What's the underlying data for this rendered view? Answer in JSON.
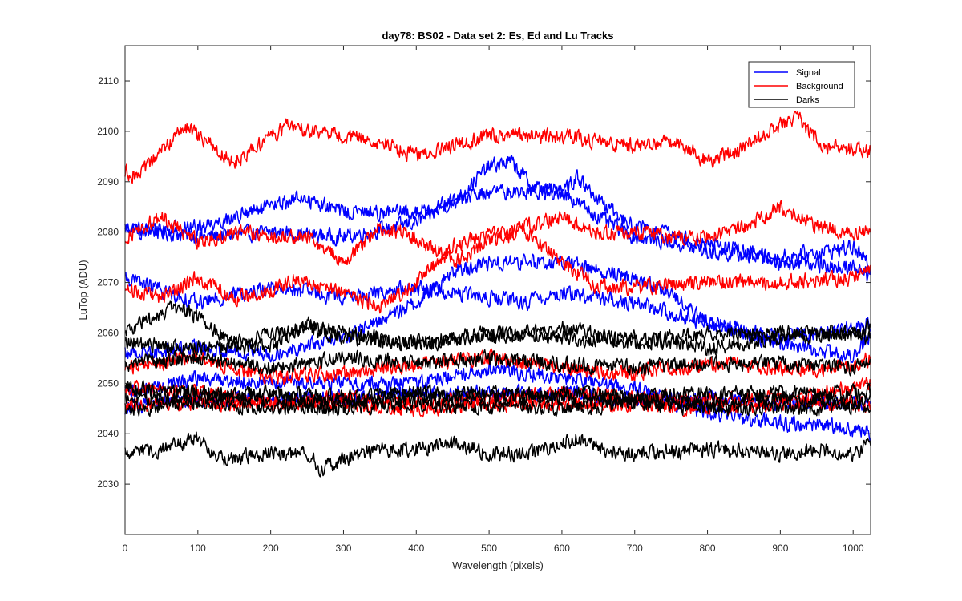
{
  "chart_data": {
    "type": "line",
    "title": "day78: BS02 - Data set 2: Es, Ed and Lu Tracks",
    "xlabel": "Wavelength (pixels)",
    "ylabel": "LuTop (ADU)",
    "xlim": [
      0,
      1024
    ],
    "ylim": [
      2020,
      2117
    ],
    "xticks": [
      0,
      100,
      200,
      300,
      400,
      500,
      600,
      700,
      800,
      900,
      1000
    ],
    "yticks": [
      2030,
      2040,
      2050,
      2060,
      2070,
      2080,
      2090,
      2100,
      2110
    ],
    "grid": false,
    "legend_position": "top-right",
    "legend": [
      {
        "name": "Signal",
        "color": "#0000ff"
      },
      {
        "name": "Background",
        "color": "#ff0000"
      },
      {
        "name": "Darks",
        "color": "#000000"
      }
    ],
    "noise_amplitude": 1.6,
    "series": [
      {
        "name": "Signal",
        "color": "#0000ff",
        "x": [
          0,
          100,
          200,
          300,
          400,
          450,
          500,
          530,
          560,
          600,
          650,
          700,
          750,
          800,
          900,
          1000,
          1024
        ],
        "y": [
          2081,
          2079,
          2080,
          2079,
          2082,
          2086,
          2093,
          2094,
          2089,
          2088,
          2083,
          2079,
          2078,
          2076,
          2075,
          2077,
          2073
        ]
      },
      {
        "name": "Signal",
        "color": "#0000ff",
        "x": [
          0,
          100,
          200,
          240,
          300,
          400,
          500,
          600,
          620,
          650,
          700,
          800,
          900,
          1000,
          1024
        ],
        "y": [
          2080,
          2081,
          2085,
          2087,
          2084,
          2084,
          2088,
          2088,
          2091,
          2086,
          2081,
          2078,
          2074,
          2073,
          2071
        ]
      },
      {
        "name": "Signal",
        "color": "#0000ff",
        "x": [
          0,
          100,
          200,
          300,
          400,
          500,
          550,
          600,
          650,
          700,
          800,
          900,
          1000,
          1024
        ],
        "y": [
          2071,
          2066,
          2069,
          2067,
          2069,
          2067,
          2066,
          2068,
          2067,
          2066,
          2062,
          2059,
          2061,
          2062
        ]
      },
      {
        "name": "Signal",
        "color": "#0000ff",
        "x": [
          0,
          100,
          200,
          300,
          400,
          450,
          500,
          600,
          700,
          750,
          800,
          900,
          1000,
          1024
        ],
        "y": [
          2056,
          2057,
          2056,
          2059,
          2066,
          2072,
          2074,
          2074,
          2071,
          2068,
          2062,
          2058,
          2055,
          2060
        ]
      },
      {
        "name": "Signal",
        "color": "#0000ff",
        "x": [
          0,
          100,
          200,
          300,
          400,
          500,
          600,
          700,
          800,
          900,
          1000,
          1024
        ],
        "y": [
          2048,
          2051,
          2050,
          2050,
          2050,
          2053,
          2051,
          2049,
          2044,
          2042,
          2041,
          2040
        ]
      },
      {
        "name": "Signal",
        "color": "#0000ff",
        "x": [
          0,
          100,
          200,
          300,
          400,
          500,
          600,
          700,
          800,
          900,
          1000,
          1024
        ],
        "y": [
          2045,
          2047,
          2047,
          2047,
          2048,
          2048,
          2048,
          2047,
          2047,
          2046,
          2046,
          2046
        ]
      },
      {
        "name": "Background",
        "color": "#ff0000",
        "x": [
          0,
          20,
          80,
          150,
          220,
          300,
          350,
          400,
          500,
          600,
          700,
          760,
          800,
          850,
          920,
          960,
          1024
        ],
        "y": [
          2092,
          2091,
          2101,
          2094,
          2101,
          2099,
          2098,
          2095,
          2099,
          2099,
          2097,
          2098,
          2094,
          2097,
          2103,
          2097,
          2096
        ]
      },
      {
        "name": "Background",
        "color": "#ff0000",
        "x": [
          0,
          50,
          100,
          150,
          200,
          250,
          300,
          350,
          400,
          450,
          500,
          550,
          600,
          650,
          700,
          750,
          800,
          850,
          900,
          950,
          1000,
          1024
        ],
        "y": [
          2079,
          2083,
          2078,
          2080,
          2079,
          2079,
          2074,
          2081,
          2079,
          2074,
          2078,
          2081,
          2083,
          2080,
          2080,
          2079,
          2079,
          2081,
          2085,
          2081,
          2080,
          2080
        ]
      },
      {
        "name": "Background",
        "color": "#ff0000",
        "x": [
          0,
          50,
          100,
          150,
          200,
          230,
          300,
          350,
          400,
          450,
          500,
          550,
          600,
          650,
          700,
          800,
          900,
          1000,
          1024
        ],
        "y": [
          2069,
          2067,
          2071,
          2067,
          2068,
          2071,
          2068,
          2065,
          2070,
          2077,
          2080,
          2080,
          2074,
          2069,
          2069,
          2070,
          2070,
          2071,
          2072
        ]
      },
      {
        "name": "Background",
        "color": "#ff0000",
        "x": [
          0,
          100,
          200,
          300,
          400,
          500,
          600,
          700,
          800,
          900,
          1000,
          1024
        ],
        "y": [
          2053,
          2055,
          2051,
          2052,
          2054,
          2055,
          2053,
          2052,
          2054,
          2053,
          2053,
          2055
        ]
      },
      {
        "name": "Background",
        "color": "#ff0000",
        "x": [
          0,
          100,
          200,
          300,
          400,
          500,
          600,
          700,
          800,
          900,
          1000,
          1024
        ],
        "y": [
          2049,
          2048,
          2046,
          2047,
          2046,
          2047,
          2048,
          2047,
          2047,
          2047,
          2049,
          2050
        ]
      },
      {
        "name": "Background",
        "color": "#ff0000",
        "x": [
          0,
          100,
          200,
          300,
          400,
          500,
          600,
          700,
          800,
          900,
          1000,
          1024
        ],
        "y": [
          2046,
          2046,
          2046,
          2046,
          2045,
          2046,
          2046,
          2046,
          2045,
          2046,
          2046,
          2045
        ]
      },
      {
        "name": "Darks",
        "color": "#000000",
        "x": [
          0,
          50,
          80,
          150,
          250,
          300,
          400,
          500,
          600,
          700,
          800,
          900,
          1000,
          1024
        ],
        "y": [
          2060,
          2064,
          2065,
          2058,
          2061,
          2059,
          2058,
          2060,
          2059,
          2058,
          2060,
          2060,
          2060,
          2061
        ]
      },
      {
        "name": "Darks",
        "color": "#000000",
        "x": [
          0,
          100,
          200,
          250,
          300,
          400,
          500,
          600,
          700,
          800,
          900,
          1000,
          1024
        ],
        "y": [
          2058,
          2057,
          2057,
          2062,
          2060,
          2058,
          2059,
          2061,
          2059,
          2057,
          2059,
          2060,
          2059
        ]
      },
      {
        "name": "Darks",
        "color": "#000000",
        "x": [
          0,
          100,
          200,
          300,
          400,
          500,
          600,
          700,
          800,
          900,
          1000,
          1024
        ],
        "y": [
          2054,
          2055,
          2053,
          2055,
          2054,
          2055,
          2054,
          2053,
          2054,
          2054,
          2053,
          2054
        ]
      },
      {
        "name": "Darks",
        "color": "#000000",
        "x": [
          0,
          100,
          200,
          300,
          400,
          500,
          600,
          700,
          800,
          900,
          1000,
          1024
        ],
        "y": [
          2049,
          2048,
          2048,
          2047,
          2048,
          2048,
          2048,
          2047,
          2048,
          2048,
          2048,
          2048
        ]
      },
      {
        "name": "Darks",
        "color": "#000000",
        "x": [
          0,
          100,
          200,
          300,
          400,
          500,
          600,
          700,
          800,
          900,
          1000,
          1024
        ],
        "y": [
          2047,
          2047,
          2047,
          2046,
          2047,
          2047,
          2047,
          2047,
          2046,
          2047,
          2046,
          2047
        ]
      },
      {
        "name": "Darks",
        "color": "#000000",
        "x": [
          0,
          100,
          200,
          300,
          400,
          500,
          600,
          700,
          800,
          900,
          1000,
          1024
        ],
        "y": [
          2045,
          2046,
          2045,
          2045,
          2046,
          2045,
          2045,
          2046,
          2045,
          2045,
          2045,
          2046
        ]
      },
      {
        "name": "Darks",
        "color": "#000000",
        "x": [
          0,
          50,
          100,
          130,
          200,
          250,
          270,
          300,
          350,
          400,
          450,
          500,
          550,
          600,
          620,
          650,
          700,
          800,
          900,
          950,
          1000,
          1024
        ],
        "y": [
          2036,
          2037,
          2039,
          2035,
          2036,
          2036,
          2033,
          2035,
          2037,
          2037,
          2038,
          2036,
          2036,
          2038,
          2039,
          2037,
          2036,
          2037,
          2036,
          2037,
          2036,
          2038
        ]
      }
    ]
  }
}
